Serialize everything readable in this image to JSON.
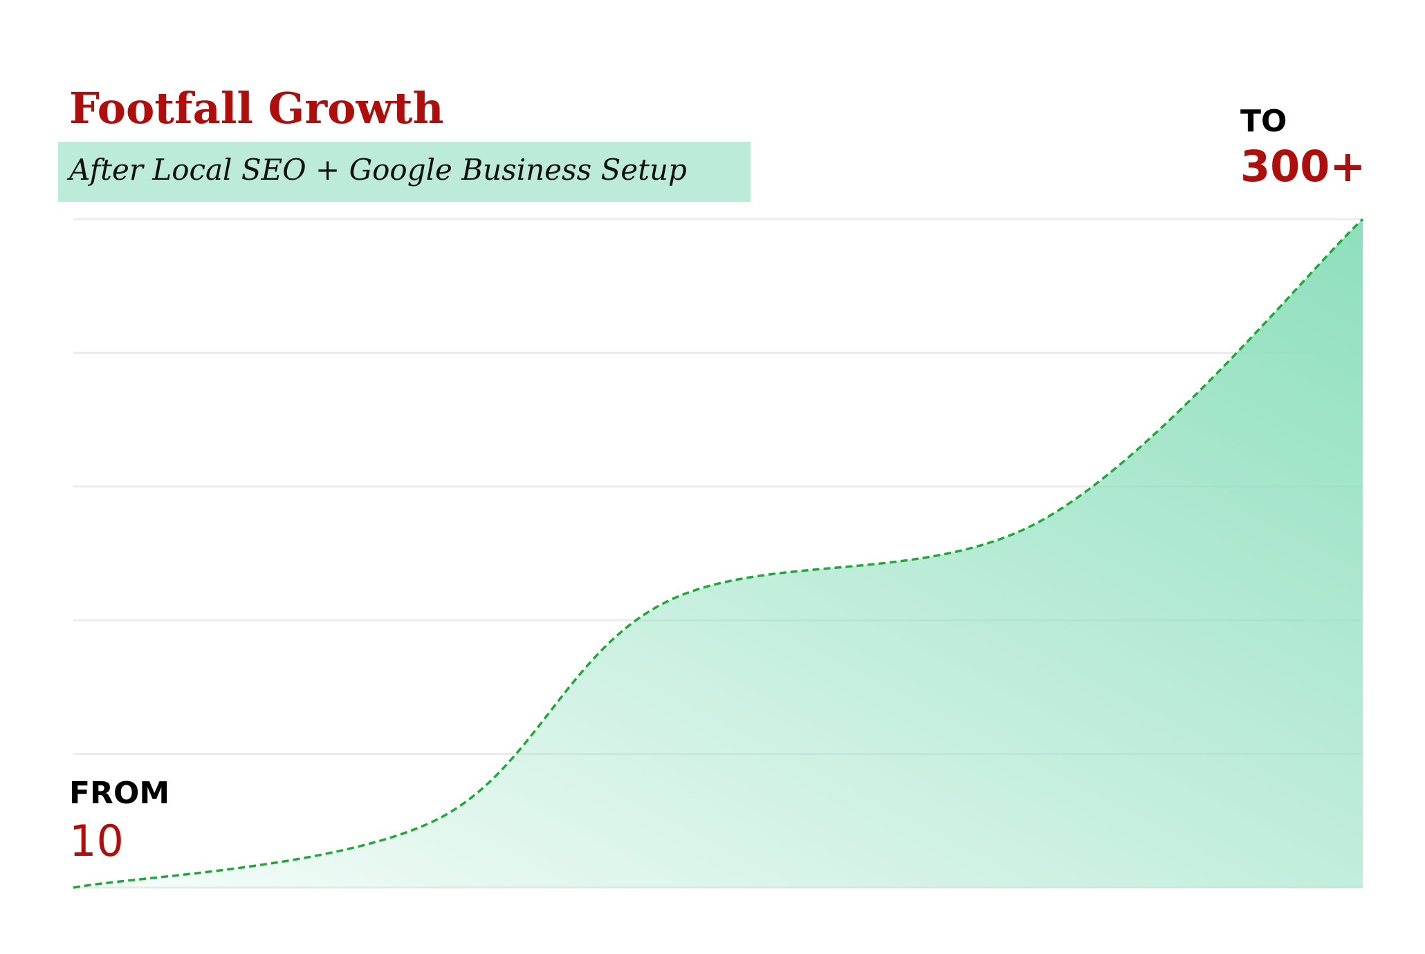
{
  "chart_data": {
    "type": "area",
    "title": "Footfall Growth",
    "subtitle": "After Local SEO + Google Business Setup",
    "x": [
      0,
      28,
      46,
      75,
      100
    ],
    "xlim": [
      0,
      100
    ],
    "values": [
      10,
      39,
      134,
      169,
      300
    ],
    "value_labels": [
      "10",
      null,
      null,
      null,
      "300+"
    ],
    "annotations": [
      "FROM",
      "TO"
    ],
    "ylim": [
      10,
      300
    ],
    "gridlines": [
      10,
      68,
      126,
      184,
      242,
      300
    ],
    "color": "#1fa83a",
    "fill_color": "#8edfbd",
    "label_color": "#b00d0d"
  }
}
